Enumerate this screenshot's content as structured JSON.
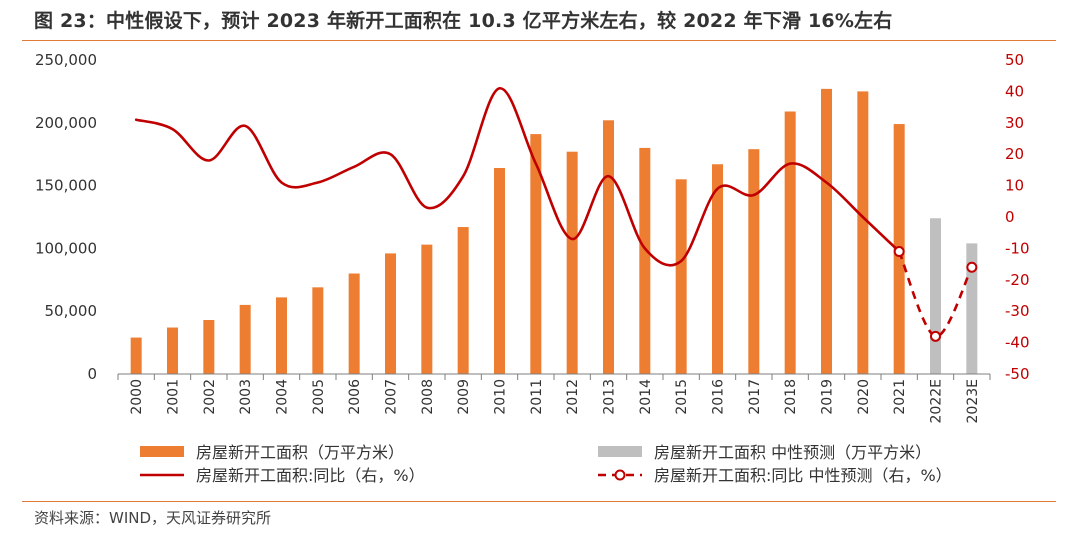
{
  "figure": {
    "title": "图 23：中性假设下，预计 2023 年新开工面积在 10.3 亿平方米左右，较 2022 年下滑 16%左右",
    "source": "资料来源：WIND，天风证券研究所"
  },
  "colors": {
    "bar_actual": "#ed7d31",
    "bar_forecast": "#bfbfbf",
    "line": "#c00000",
    "right_axis_text": "#c00000",
    "rule": "#e07b3a"
  },
  "chart_data": {
    "type": "bar",
    "categories": [
      "2000",
      "2001",
      "2002",
      "2003",
      "2004",
      "2005",
      "2006",
      "2007",
      "2008",
      "2009",
      "2010",
      "2011",
      "2012",
      "2013",
      "2014",
      "2015",
      "2016",
      "2017",
      "2018",
      "2019",
      "2020",
      "2021",
      "2022E",
      "2023E"
    ],
    "series": [
      {
        "name": "房屋新开工面积（万平方米）",
        "kind": "bar",
        "axis": "left",
        "values": [
          29000,
          37000,
          43000,
          55000,
          61000,
          69000,
          80000,
          96000,
          103000,
          117000,
          164000,
          191000,
          177000,
          202000,
          180000,
          155000,
          167000,
          179000,
          209000,
          227000,
          225000,
          199000,
          null,
          null
        ]
      },
      {
        "name": "房屋新开工面积 中性预测（万平方米）",
        "kind": "bar",
        "axis": "left",
        "values": [
          null,
          null,
          null,
          null,
          null,
          null,
          null,
          null,
          null,
          null,
          null,
          null,
          null,
          null,
          null,
          null,
          null,
          null,
          null,
          null,
          null,
          null,
          124000,
          104000
        ]
      },
      {
        "name": "房屋新开工面积:同比（右，%）",
        "kind": "line",
        "axis": "right",
        "smooth": true,
        "values": [
          31,
          28,
          18,
          29,
          11,
          11,
          16,
          20,
          3,
          13,
          41,
          17,
          -7,
          13,
          -10,
          -14,
          9,
          7,
          17,
          11,
          0,
          -11,
          null,
          null
        ]
      },
      {
        "name": "房屋新开工面积:同比 中性预测（右，%）",
        "kind": "line",
        "axis": "right",
        "style": "dashed-with-open-circles",
        "values": [
          null,
          null,
          null,
          null,
          null,
          null,
          null,
          null,
          null,
          null,
          null,
          null,
          null,
          null,
          null,
          null,
          null,
          null,
          null,
          null,
          null,
          -11,
          -38,
          -16
        ]
      }
    ],
    "left_axis": {
      "ylim": [
        0,
        250000
      ],
      "ticks": [
        "0",
        "50,000",
        "100,000",
        "150,000",
        "200,000",
        "250,000"
      ]
    },
    "right_axis": {
      "ylim": [
        -50,
        50
      ],
      "ticks": [
        "-50",
        "-40",
        "-30",
        "-20",
        "-10",
        "0",
        "10",
        "20",
        "30",
        "40",
        "50"
      ]
    },
    "legend": {
      "position": "bottom",
      "items": [
        "房屋新开工面积（万平方米）",
        "房屋新开工面积 中性预测（万平方米）",
        "房屋新开工面积:同比（右，%）",
        "房屋新开工面积:同比 中性预测（右，%）"
      ]
    },
    "grid": false
  }
}
